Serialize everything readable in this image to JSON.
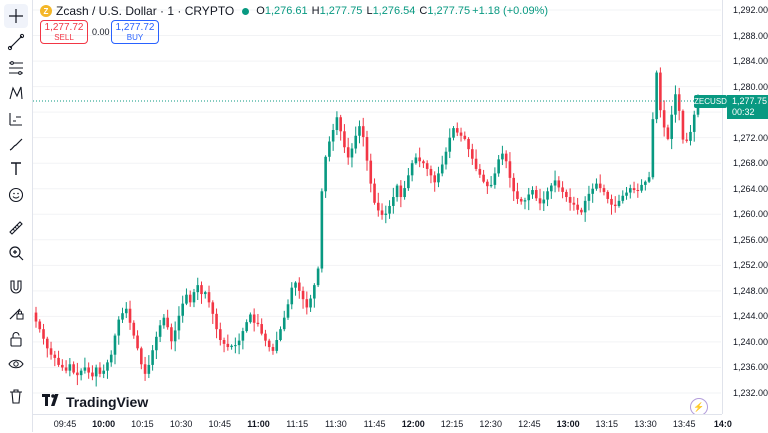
{
  "instrument": {
    "coin_letter": "Z",
    "title": "Zcash / U.S. Dollar · 1 · CRYPTO",
    "status_color": "#089981",
    "ohlc": [
      {
        "k": "O",
        "v": "1,276.61"
      },
      {
        "k": "H",
        "v": "1,277.75"
      },
      {
        "k": "L",
        "v": "1,276.54"
      },
      {
        "k": "C",
        "v": "1,277.75"
      }
    ],
    "change": "+1.18 (+0.09%)"
  },
  "trade": {
    "sell_price": "1,277.72",
    "sell_label": "SELL",
    "spread": "0.00",
    "buy_price": "1,277.72",
    "buy_label": "BUY"
  },
  "last_price": {
    "symbol": "ZECUSD",
    "price": "1,277.75",
    "countdown": "00:32"
  },
  "brand": "TradingView",
  "toolbar": [
    "crosshair-icon",
    "trend-line-icon",
    "fib-icon",
    "pattern-icon",
    "forecast-icon",
    "brush-icon",
    "text-icon",
    "emoji-icon",
    "ruler-icon",
    "zoom-icon",
    "magnet-icon",
    "lock-drawings-icon",
    "lock-icon",
    "eye-icon",
    "trash-icon"
  ],
  "colors": {
    "up": "#089981",
    "down": "#f23645",
    "buy": "#2962ff"
  },
  "chart_data": {
    "type": "candlestick",
    "y_ticks": [
      "1,292.00",
      "1,288.00",
      "1,284.00",
      "1,280.00",
      "1,276.00",
      "1,272.00",
      "1,268.00",
      "1,264.00",
      "1,260.00",
      "1,256.00",
      "1,252.00",
      "1,248.00",
      "1,244.00",
      "1,240.00",
      "1,236.00",
      "1,232.00"
    ],
    "x_ticks": [
      {
        "label": "09:45",
        "bold": false
      },
      {
        "label": "10:00",
        "bold": true
      },
      {
        "label": "10:15",
        "bold": false
      },
      {
        "label": "10:30",
        "bold": false
      },
      {
        "label": "10:45",
        "bold": false
      },
      {
        "label": "11:00",
        "bold": true
      },
      {
        "label": "11:15",
        "bold": false
      },
      {
        "label": "11:30",
        "bold": false
      },
      {
        "label": "11:45",
        "bold": false
      },
      {
        "label": "12:00",
        "bold": true
      },
      {
        "label": "12:15",
        "bold": false
      },
      {
        "label": "12:30",
        "bold": false
      },
      {
        "label": "12:45",
        "bold": false
      },
      {
        "label": "13:00",
        "bold": true
      },
      {
        "label": "13:15",
        "bold": false
      },
      {
        "label": "13:30",
        "bold": false
      },
      {
        "label": "13:45",
        "bold": false
      },
      {
        "label": "14:0",
        "bold": true
      }
    ],
    "ylim": [
      1232,
      1292
    ],
    "last": 1277.75,
    "closes": [
      1243.2,
      1242,
      1240.5,
      1239,
      1238,
      1237.5,
      1236.4,
      1236,
      1235.5,
      1236.5,
      1235.2,
      1234.8,
      1235.5,
      1236,
      1235.2,
      1234.6,
      1236,
      1235,
      1235.5,
      1236.8,
      1238,
      1241,
      1243.5,
      1244.5,
      1245.2,
      1243,
      1241,
      1239,
      1236.5,
      1235,
      1236.4,
      1238.7,
      1240.8,
      1242.6,
      1243.8,
      1242.3,
      1240.1,
      1241.8,
      1244.1,
      1246,
      1247.4,
      1246.2,
      1247.8,
      1248.9,
      1247.5,
      1247.8,
      1246.2,
      1244.4,
      1242,
      1240.3,
      1239.7,
      1239.2,
      1239.4,
      1239.5,
      1240.2,
      1241.7,
      1243.1,
      1244.3,
      1243,
      1242.8,
      1241.3,
      1240.2,
      1239.2,
      1238.6,
      1240.3,
      1242,
      1243.8,
      1245.9,
      1248.5,
      1249.3,
      1248,
      1246.7,
      1245.4,
      1246.8,
      1248.9,
      1251.5,
      1263.6,
      1269,
      1271.4,
      1273.2,
      1275.2,
      1273,
      1270.5,
      1268.9,
      1270.3,
      1272.3,
      1273.8,
      1272.1,
      1268.4,
      1264.8,
      1261.8,
      1260.6,
      1259.9,
      1260.1,
      1261.3,
      1262.7,
      1264.5,
      1262.7,
      1264.1,
      1266.1,
      1268,
      1268.9,
      1268.3,
      1268,
      1267.1,
      1266.1,
      1265,
      1266.4,
      1267.8,
      1269.8,
      1272,
      1273.5,
      1272.8,
      1272.3,
      1271.8,
      1270.2,
      1268.7,
      1267.1,
      1266.2,
      1265.1,
      1264.4,
      1264.6,
      1266.4,
      1268.6,
      1269.5,
      1268.3,
      1265.7,
      1263.6,
      1262.4,
      1262,
      1262.2,
      1263.1,
      1263.8,
      1262.5,
      1261.7,
      1262.3,
      1263.6,
      1264.5,
      1265.3,
      1264.2,
      1263.5,
      1262.7,
      1261.8,
      1261.5,
      1260.7,
      1260.3,
      1262.1,
      1263.2,
      1264,
      1264.8,
      1264.1,
      1263.5,
      1262.4,
      1261.5,
      1261.3,
      1262.1,
      1262.9,
      1263.4,
      1264.1,
      1263.8,
      1263.7,
      1264.6,
      1265.1,
      1265.8,
      1274.9,
      1282.2,
      1276.3,
      1273.6,
      1271.8,
      1275.6,
      1278.8,
      1276.2,
      1271.7,
      1271.5,
      1272.9,
      1275.6,
      1277.75
    ]
  }
}
